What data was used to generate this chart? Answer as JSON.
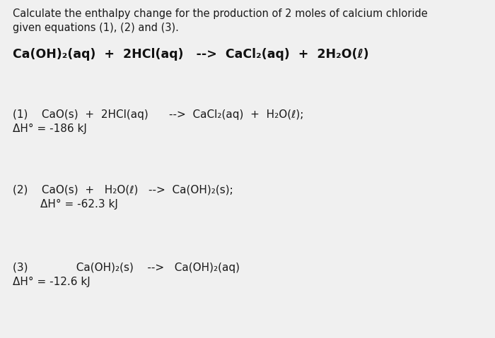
{
  "background_color": "#f0f0f0",
  "title_line1": "Calculate the enthalpy change for the production of 2 moles of calcium chloride",
  "title_line2": "given equations (1), (2) and (3).",
  "target_eq": "Ca(OH)₂(aq)  +  2HCl(aq)   -->  CaCl₂(aq)  +  2H₂O(ℓ)",
  "eq1_line1": "(1)    CaO(s)  +  2HCl(aq)      -->  CaCl₂(aq)  +  H₂O(ℓ);",
  "eq1_line2": "ΔH° = -186 kJ",
  "eq2_line1": "(2)    CaO(s)  +   H₂O(ℓ)   -->  Ca(OH)₂(s);",
  "eq2_line2": "        ΔH° = -62.3 kJ",
  "eq3_line1": "(3)              Ca(OH)₂(s)    -->   Ca(OH)₂(aq)",
  "eq3_line2": "ΔH° = -12.6 kJ",
  "text_color": "#1a1a1a",
  "bold_color": "#111111",
  "title_fontsize": 10.5,
  "body_fontsize": 11.0,
  "bold_fontsize": 12.5
}
